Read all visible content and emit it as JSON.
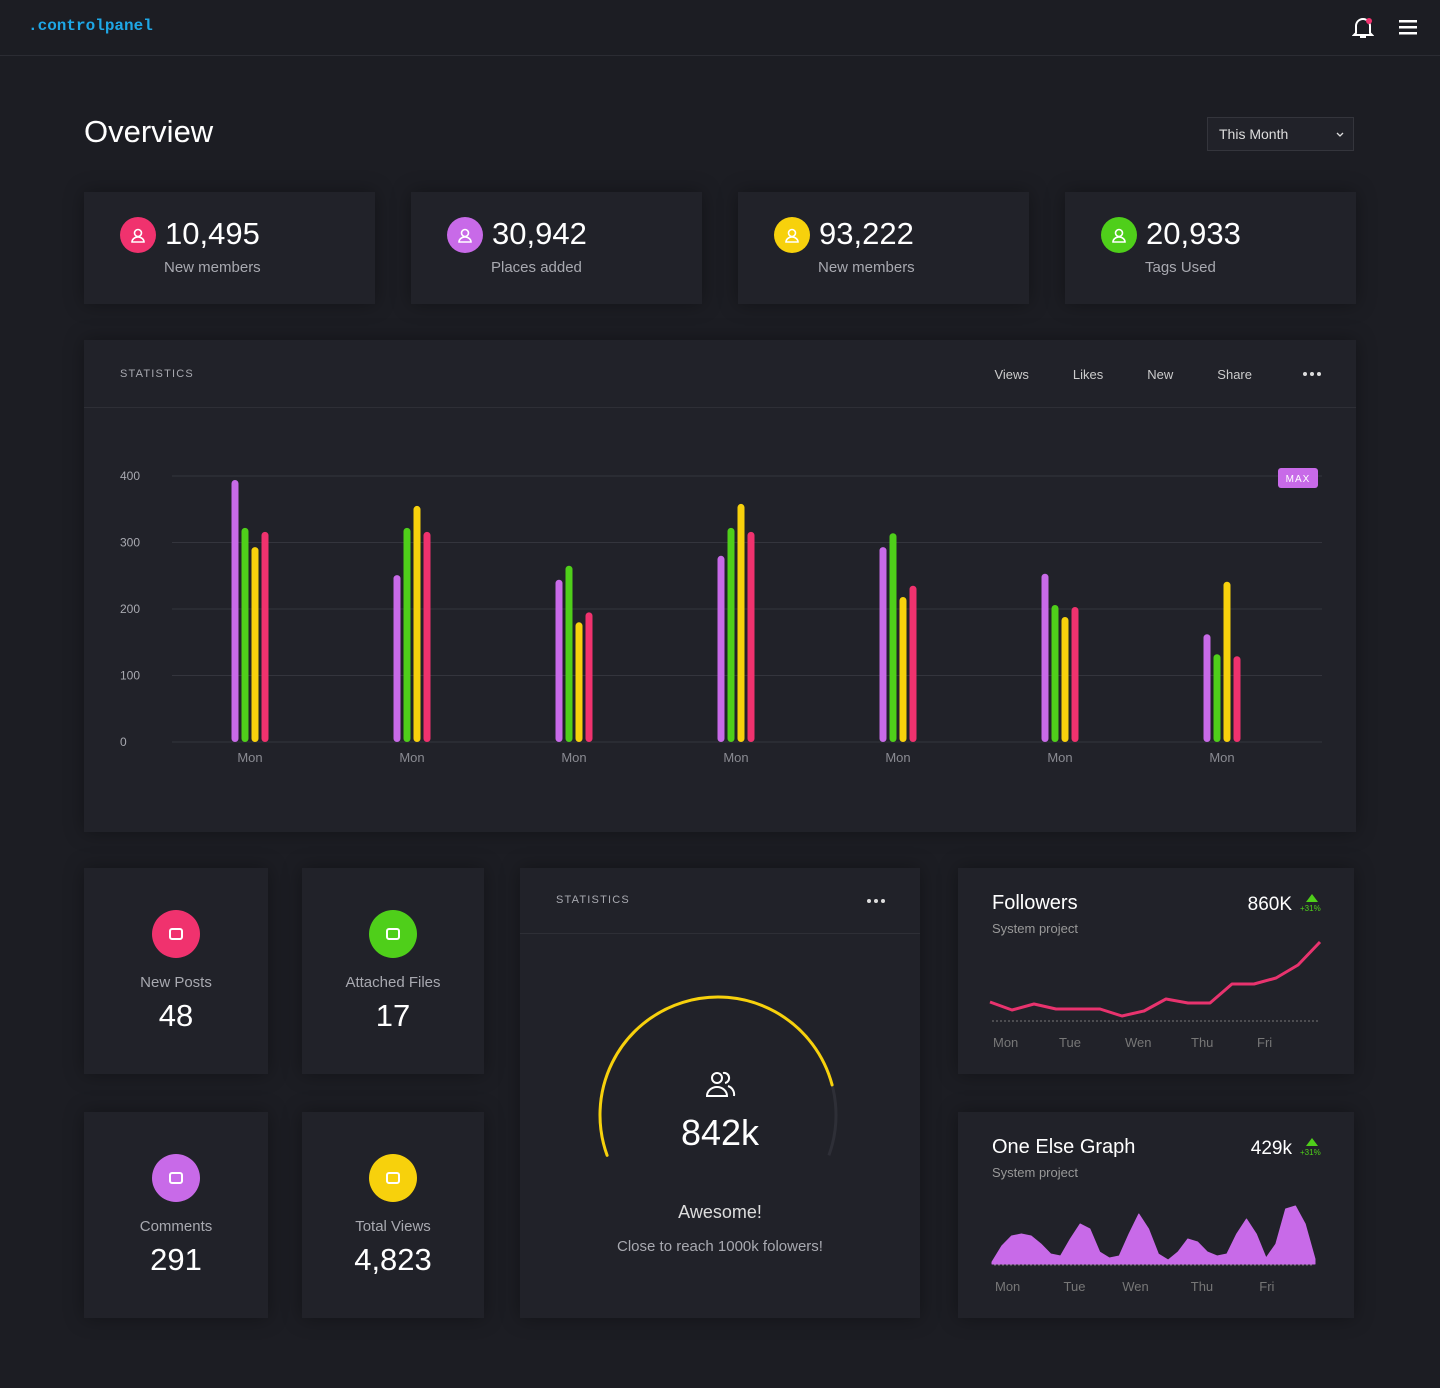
{
  "header": {
    "brand": ".controlpanel"
  },
  "overview": {
    "title": "Overview",
    "period": "This Month"
  },
  "kpis": [
    {
      "value": "10,495",
      "label": "New members"
    },
    {
      "value": "30,942",
      "label": "Places added"
    },
    {
      "value": "93,222",
      "label": "New members"
    },
    {
      "value": "20,933",
      "label": "Tags Used"
    }
  ],
  "tiles": [
    {
      "label": "New Posts",
      "value": "48"
    },
    {
      "label": "Attached Files",
      "value": "17"
    },
    {
      "label": "Comments",
      "value": "291"
    },
    {
      "label": "Total Views",
      "value": "4,823"
    }
  ],
  "gauge_card": {
    "headline": "Awesome!",
    "note": "Close to reach 1000k folowers!"
  },
  "chart_data": [
    {
      "type": "bar",
      "title": "STATISTICS",
      "categories": [
        "Mon",
        "Mon",
        "Mon",
        "Mon",
        "Mon",
        "Mon",
        "Mon"
      ],
      "series": [
        {
          "name": "Views",
          "color": "#c86ae8",
          "values": [
            394,
            251,
            244,
            280,
            293,
            253,
            162
          ]
        },
        {
          "name": "Likes",
          "color": "#4fcf1a",
          "values": [
            322,
            322,
            265,
            322,
            314,
            206,
            132
          ]
        },
        {
          "name": "New",
          "color": "#f7d10c",
          "values": [
            293,
            355,
            180,
            358,
            218,
            188,
            241
          ]
        },
        {
          "name": "Share",
          "color": "#f0326e",
          "values": [
            316,
            316,
            195,
            316,
            235,
            203,
            129
          ]
        }
      ],
      "ylim": [
        0,
        400
      ],
      "yticks": [
        0,
        100,
        200,
        300,
        400
      ],
      "grid": true,
      "annotation": "MAX"
    },
    {
      "type": "gauge",
      "title": "STATISTICS",
      "values": [
        842
      ],
      "value_labels": [
        "842k"
      ],
      "ylim": [
        0,
        1000
      ],
      "color": "#f7d10c"
    },
    {
      "type": "line",
      "title": "Followers",
      "subtitle": "System project",
      "total": "860K",
      "change": "+31%",
      "x": [
        0,
        1,
        2,
        3,
        4,
        5,
        6,
        7,
        8,
        9,
        10,
        11,
        12,
        13,
        14,
        15
      ],
      "values": [
        18,
        10,
        16,
        11,
        11,
        11,
        4,
        9,
        21,
        17,
        17,
        36,
        36,
        42,
        55,
        78
      ],
      "xlim": [
        0,
        15
      ],
      "color": "#e8336e",
      "xticks": [
        {
          "value": 0,
          "label": "Mon"
        },
        {
          "value": 3,
          "label": "Tue"
        },
        {
          "value": 6,
          "label": "Wen"
        },
        {
          "value": 9,
          "label": "Thu"
        },
        {
          "value": 12,
          "label": "Fri"
        }
      ]
    },
    {
      "type": "area",
      "title": "One Else Graph",
      "subtitle": "System project",
      "total": "429k",
      "change": "+31%",
      "x": [
        0,
        1,
        2,
        3,
        4,
        5,
        6,
        7,
        8,
        9,
        10,
        11,
        12,
        13,
        14,
        15,
        16,
        17,
        18,
        19,
        20,
        21,
        22,
        23,
        24,
        25,
        26,
        27,
        28,
        29,
        30,
        31,
        32,
        33
      ],
      "values": [
        2,
        18,
        28,
        30,
        28,
        20,
        10,
        8,
        25,
        40,
        35,
        12,
        6,
        8,
        30,
        50,
        35,
        10,
        4,
        12,
        25,
        22,
        12,
        8,
        10,
        30,
        45,
        30,
        6,
        20,
        55,
        58,
        40,
        5
      ],
      "xlim": [
        0,
        33
      ],
      "color": "#c86ae8",
      "xticks": [
        {
          "value": 0,
          "label": "Mon"
        },
        {
          "value": 7,
          "label": "Tue"
        },
        {
          "value": 13,
          "label": "Wen"
        },
        {
          "value": 20,
          "label": "Thu"
        },
        {
          "value": 27,
          "label": "Fri"
        }
      ]
    }
  ]
}
